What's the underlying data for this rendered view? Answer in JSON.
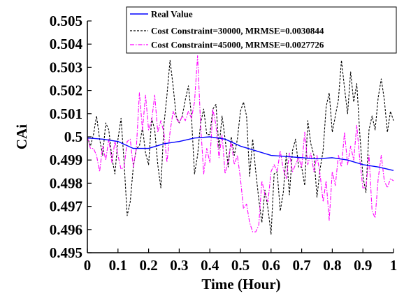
{
  "chart_data": {
    "type": "line",
    "title": "",
    "xlabel": "Time (Hour)",
    "ylabel": "CAi",
    "xlim": [
      0,
      1
    ],
    "ylim": [
      0.495,
      0.505
    ],
    "xticks": [
      "0",
      "0.1",
      "0.2",
      "0.3",
      "0.4",
      "0.5",
      "0.6",
      "0.7",
      "0.8",
      "0.9",
      "1"
    ],
    "yticks": [
      "0.495",
      "0.496",
      "0.497",
      "0.498",
      "0.499",
      "0.5",
      "0.501",
      "0.502",
      "0.503",
      "0.504",
      "0.505"
    ],
    "grid": false,
    "legend_position": "top-right",
    "series": [
      {
        "name": "Real Value",
        "color": "#0000ff",
        "style": "solid",
        "x": [
          0,
          0.05,
          0.1,
          0.15,
          0.2,
          0.25,
          0.3,
          0.35,
          0.4,
          0.45,
          0.5,
          0.55,
          0.6,
          0.65,
          0.7,
          0.75,
          0.8,
          0.85,
          0.9,
          0.95,
          1.0
        ],
        "y": [
          0.49995,
          0.4999,
          0.4998,
          0.4995,
          0.4995,
          0.4997,
          0.4998,
          0.49995,
          0.5,
          0.4999,
          0.4996,
          0.4994,
          0.4992,
          0.49915,
          0.4991,
          0.49905,
          0.4991,
          0.499,
          0.4988,
          0.4987,
          0.49855
        ]
      },
      {
        "name": "Cost Constraint=30000, MRMSE=0.0030844",
        "color": "#000000",
        "style": "dashed",
        "x": [
          0,
          0.01,
          0.02,
          0.03,
          0.04,
          0.05,
          0.06,
          0.07,
          0.08,
          0.09,
          0.1,
          0.11,
          0.12,
          0.13,
          0.14,
          0.15,
          0.16,
          0.17,
          0.18,
          0.19,
          0.2,
          0.21,
          0.22,
          0.23,
          0.24,
          0.25,
          0.26,
          0.27,
          0.28,
          0.29,
          0.3,
          0.31,
          0.32,
          0.33,
          0.34,
          0.35,
          0.36,
          0.37,
          0.38,
          0.39,
          0.4,
          0.41,
          0.42,
          0.43,
          0.44,
          0.45,
          0.46,
          0.47,
          0.48,
          0.49,
          0.5,
          0.51,
          0.52,
          0.53,
          0.54,
          0.55,
          0.56,
          0.57,
          0.58,
          0.59,
          0.6,
          0.61,
          0.62,
          0.63,
          0.64,
          0.65,
          0.66,
          0.67,
          0.68,
          0.69,
          0.7,
          0.71,
          0.72,
          0.73,
          0.74,
          0.75,
          0.76,
          0.77,
          0.78,
          0.79,
          0.8,
          0.81,
          0.82,
          0.83,
          0.84,
          0.85,
          0.86,
          0.87,
          0.88,
          0.89,
          0.9,
          0.91,
          0.92,
          0.93,
          0.94,
          0.95,
          0.96,
          0.97,
          0.98,
          0.99,
          1.0
        ],
        "y": [
          0.5,
          0.4996,
          0.5001,
          0.5009,
          0.4999,
          0.4992,
          0.5006,
          0.5003,
          0.4991,
          0.4984,
          0.4999,
          0.5008,
          0.4989,
          0.4966,
          0.4972,
          0.4987,
          0.4995,
          0.4996,
          0.5004,
          0.4993,
          0.4988,
          0.5008,
          0.5003,
          0.4988,
          0.4978,
          0.5005,
          0.5018,
          0.5033,
          0.5022,
          0.5009,
          0.5006,
          0.5009,
          0.5016,
          0.5022,
          0.5009,
          0.4984,
          0.4992,
          0.5006,
          0.5012,
          0.5001,
          0.5001,
          0.5012,
          0.5014,
          0.4995,
          0.5009,
          0.4999,
          0.4987,
          0.5,
          0.4992,
          0.4999,
          0.5011,
          0.5015,
          0.5009,
          0.4983,
          0.4999,
          0.4985,
          0.4973,
          0.4963,
          0.4977,
          0.4969,
          0.4958,
          0.4984,
          0.4985,
          0.4968,
          0.4976,
          0.4993,
          0.4975,
          0.4994,
          0.4999,
          0.4987,
          0.4987,
          0.4979,
          0.5007,
          0.4997,
          0.4992,
          0.4974,
          0.4986,
          0.4994,
          0.5013,
          0.5019,
          0.5002,
          0.5009,
          0.5016,
          0.5033,
          0.5021,
          0.501,
          0.5028,
          0.5015,
          0.5023,
          0.5001,
          0.4983,
          0.4976,
          0.5003,
          0.5009,
          0.5003,
          0.5017,
          0.5025,
          0.5016,
          0.5002,
          0.5011,
          0.5007
        ]
      },
      {
        "name": "Cost Constraint=45000, MRMSE=0.0027726",
        "color": "#ff00ff",
        "style": "dashdot",
        "x": [
          0,
          0.01,
          0.02,
          0.03,
          0.04,
          0.05,
          0.06,
          0.07,
          0.08,
          0.09,
          0.1,
          0.11,
          0.12,
          0.13,
          0.14,
          0.15,
          0.16,
          0.17,
          0.18,
          0.19,
          0.2,
          0.21,
          0.22,
          0.23,
          0.24,
          0.25,
          0.26,
          0.27,
          0.28,
          0.29,
          0.3,
          0.31,
          0.32,
          0.33,
          0.34,
          0.35,
          0.36,
          0.37,
          0.38,
          0.39,
          0.4,
          0.41,
          0.42,
          0.43,
          0.44,
          0.45,
          0.46,
          0.47,
          0.48,
          0.49,
          0.5,
          0.51,
          0.52,
          0.53,
          0.54,
          0.55,
          0.56,
          0.57,
          0.58,
          0.59,
          0.6,
          0.61,
          0.62,
          0.63,
          0.64,
          0.65,
          0.66,
          0.67,
          0.68,
          0.69,
          0.7,
          0.71,
          0.72,
          0.73,
          0.74,
          0.75,
          0.76,
          0.77,
          0.78,
          0.79,
          0.8,
          0.81,
          0.82,
          0.83,
          0.84,
          0.85,
          0.86,
          0.87,
          0.88,
          0.89,
          0.9,
          0.91,
          0.92,
          0.93,
          0.94,
          0.95,
          0.96,
          0.97,
          0.98,
          0.99,
          1.0
        ],
        "y": [
          0.5,
          0.4995,
          0.4995,
          0.4992,
          0.4985,
          0.4996,
          0.499,
          0.4999,
          0.4989,
          0.4998,
          0.4992,
          0.4986,
          0.4987,
          0.4998,
          0.4999,
          0.4987,
          0.4995,
          0.5019,
          0.5003,
          0.5018,
          0.5003,
          0.5007,
          0.5018,
          0.5002,
          0.5007,
          0.5002,
          0.4989,
          0.5002,
          0.5011,
          0.5008,
          0.5006,
          0.5009,
          0.5007,
          0.5011,
          0.5008,
          0.5015,
          0.5035,
          0.5005,
          0.4984,
          0.4995,
          0.4989,
          0.5012,
          0.5005,
          0.4991,
          0.5001,
          0.4984,
          0.499,
          0.4998,
          0.4988,
          0.4992,
          0.4982,
          0.4969,
          0.4971,
          0.4963,
          0.4959,
          0.4959,
          0.4962,
          0.4981,
          0.4975,
          0.4972,
          0.4985,
          0.4988,
          0.4985,
          0.4994,
          0.4986,
          0.4982,
          0.4993,
          0.4985,
          0.4988,
          0.4991,
          0.4987,
          0.5002,
          0.4988,
          0.4993,
          0.4985,
          0.4992,
          0.4984,
          0.4972,
          0.4981,
          0.4964,
          0.4985,
          0.4979,
          0.4992,
          0.4987,
          0.5002,
          0.4988,
          0.4996,
          0.499,
          0.5005,
          0.499,
          0.4978,
          0.4978,
          0.4992,
          0.4968,
          0.4965,
          0.4982,
          0.4992,
          0.4981,
          0.4978,
          0.4982,
          0.4981
        ]
      }
    ]
  }
}
